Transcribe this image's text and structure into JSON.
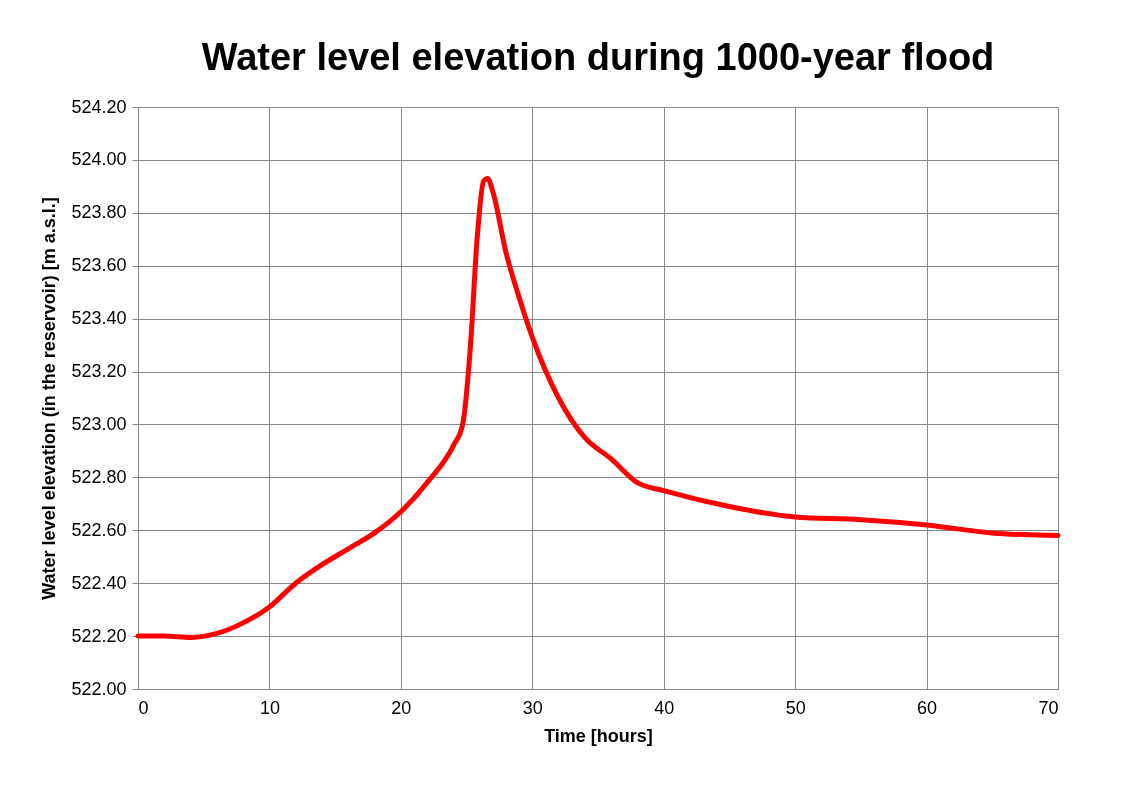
{
  "chart_data": {
    "type": "line",
    "title": "Water level elevation during 1000-year flood",
    "xlabel": "Time [hours]",
    "ylabel": "Water level elevation (in the reservoir) [m a.s.l.]",
    "x": [
      0,
      2,
      4,
      6,
      8,
      10,
      12,
      14,
      16,
      18,
      20,
      22,
      24,
      24.7,
      25.3,
      25.8,
      26.3,
      26.6,
      27,
      28,
      29,
      30,
      32,
      34,
      36,
      38,
      40,
      45,
      50,
      55,
      60,
      65,
      70
    ],
    "series": [
      {
        "color": "#ff0000",
        "values": [
          522.2,
          522.2,
          522.195,
          522.21,
          522.25,
          522.31,
          522.4,
          522.47,
          522.53,
          522.59,
          522.67,
          522.78,
          522.92,
          523.0,
          523.3,
          523.7,
          523.92,
          523.93,
          523.88,
          523.65,
          523.48,
          523.33,
          523.1,
          522.95,
          522.87,
          522.78,
          522.75,
          522.69,
          522.65,
          522.64,
          522.62,
          522.59,
          522.58
        ]
      }
    ],
    "xlim": [
      0,
      70
    ],
    "xticks": [
      0,
      10,
      20,
      30,
      40,
      50,
      60,
      70
    ],
    "ylim": [
      522.0,
      524.2
    ],
    "yticks": [
      {
        "value": 522.0,
        "label": "522.00"
      },
      {
        "value": 522.2,
        "label": "522.20"
      },
      {
        "value": 522.4,
        "label": "522.40"
      },
      {
        "value": 522.6,
        "label": "522.60"
      },
      {
        "value": 522.8,
        "label": "522.80"
      },
      {
        "value": 523.0,
        "label": "523.00"
      },
      {
        "value": 523.2,
        "label": "523.20"
      },
      {
        "value": 523.4,
        "label": "523.40"
      },
      {
        "value": 523.6,
        "label": "523.60"
      },
      {
        "value": 523.8,
        "label": "523.80"
      },
      {
        "value": 524.0,
        "label": "524.00"
      },
      {
        "value": 524.2,
        "label": "524.20"
      }
    ],
    "grid": true,
    "marker": "none",
    "line_style": "solid"
  }
}
